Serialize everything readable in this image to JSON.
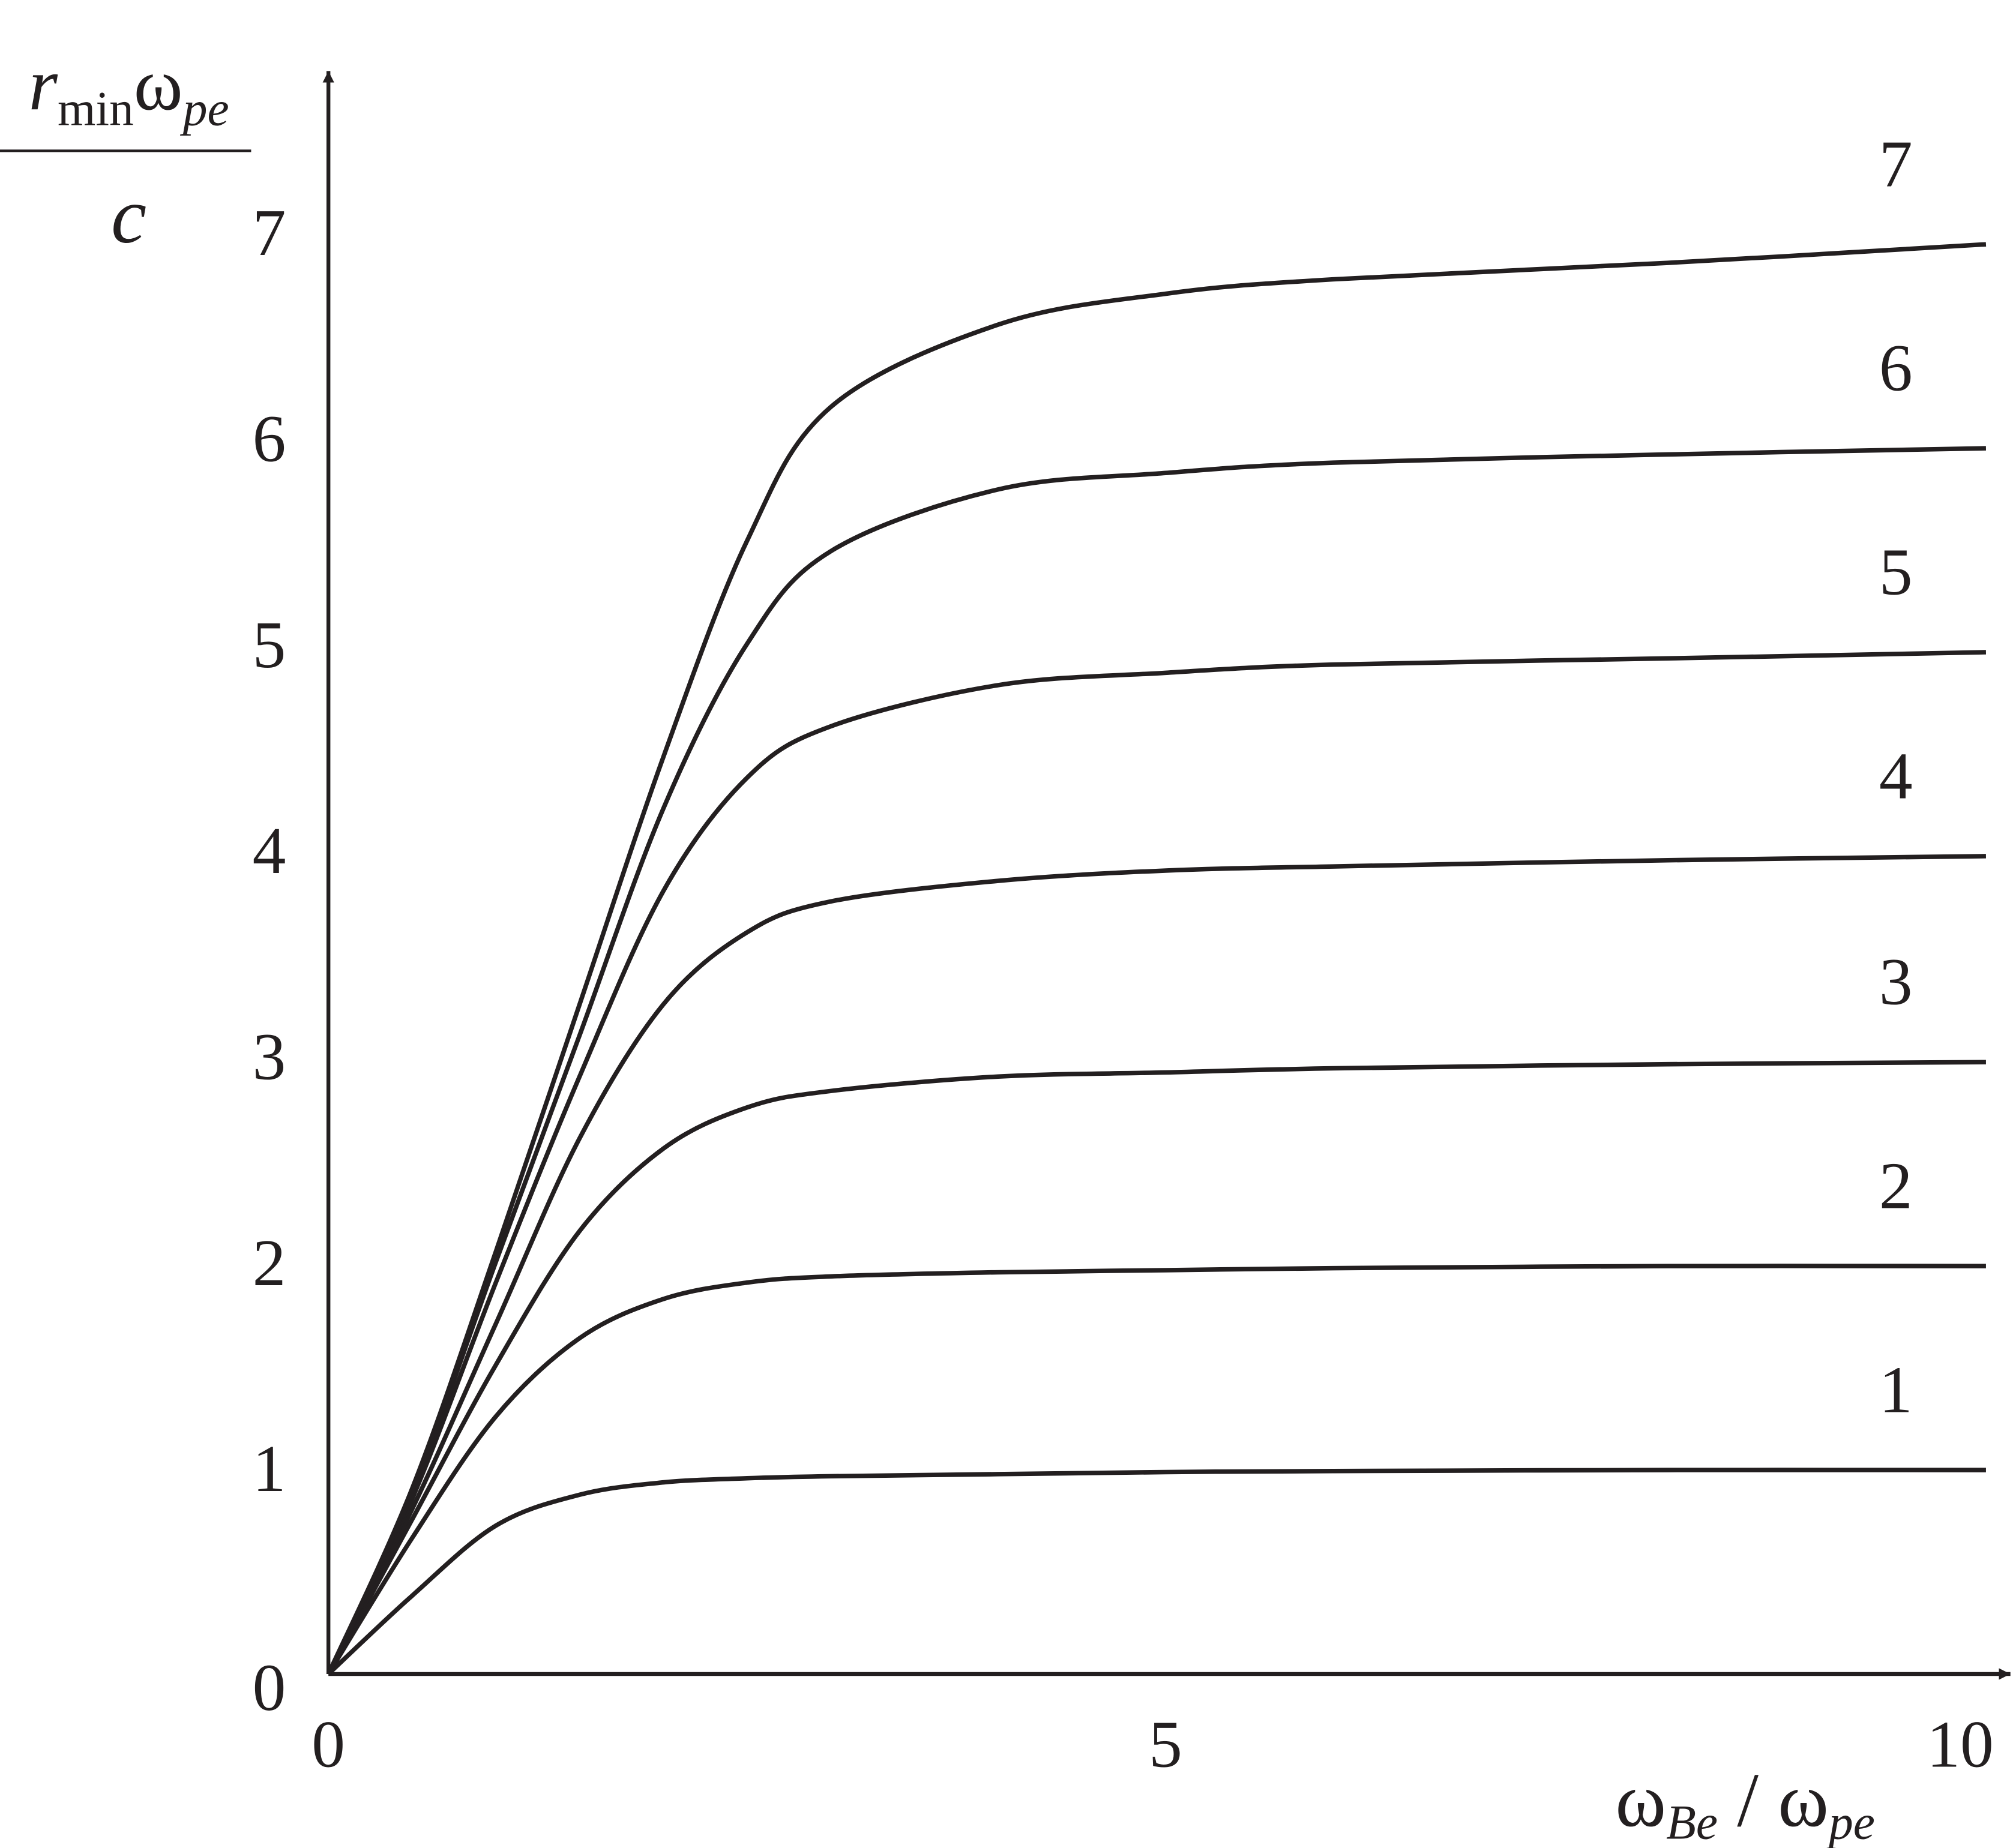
{
  "chart_data": {
    "type": "line",
    "x_label": [
      "ω",
      "Be",
      " / ω",
      "pe"
    ],
    "y_label": {
      "numerator": [
        "r",
        "min",
        "ω",
        "pe"
      ],
      "denominator": "c"
    },
    "x": [
      0,
      0.5,
      1,
      1.5,
      2,
      2.5,
      3,
      4,
      5,
      6,
      8,
      9.9
    ],
    "series": [
      {
        "name": "1",
        "color": "#231f20",
        "values": [
          0,
          0.38,
          0.72,
          0.87,
          0.93,
          0.95,
          0.96,
          0.97,
          0.98,
          0.985,
          0.99,
          0.99
        ]
      },
      {
        "name": "2",
        "color": "#231f20",
        "values": [
          0,
          0.66,
          1.25,
          1.63,
          1.82,
          1.9,
          1.93,
          1.95,
          1.96,
          1.97,
          1.98,
          1.98
        ]
      },
      {
        "name": "3",
        "color": "#231f20",
        "values": [
          0,
          0.75,
          1.5,
          2.15,
          2.55,
          2.75,
          2.83,
          2.9,
          2.92,
          2.94,
          2.96,
          2.97
        ]
      },
      {
        "name": "4",
        "color": "#231f20",
        "values": [
          0,
          0.8,
          1.7,
          2.6,
          3.25,
          3.6,
          3.75,
          3.85,
          3.9,
          3.92,
          3.95,
          3.97
        ]
      },
      {
        "name": "5",
        "color": "#231f20",
        "values": [
          0,
          0.85,
          1.9,
          2.9,
          3.8,
          4.35,
          4.6,
          4.8,
          4.86,
          4.9,
          4.93,
          4.96
        ]
      },
      {
        "name": "6",
        "color": "#231f20",
        "values": [
          0,
          0.88,
          2.0,
          3.1,
          4.2,
          5.0,
          5.45,
          5.75,
          5.83,
          5.88,
          5.92,
          5.95
        ]
      },
      {
        "name": "7",
        "color": "#231f20",
        "values": [
          0,
          0.9,
          2.05,
          3.25,
          4.45,
          5.5,
          6.15,
          6.55,
          6.7,
          6.77,
          6.85,
          6.94
        ]
      }
    ],
    "xlim": [
      0,
      10
    ],
    "ylim": [
      0,
      7.75
    ],
    "xticks": [
      0,
      5,
      10
    ],
    "yticks": [
      0,
      1,
      2,
      3,
      4,
      5,
      6,
      7
    ],
    "grid": false
  }
}
